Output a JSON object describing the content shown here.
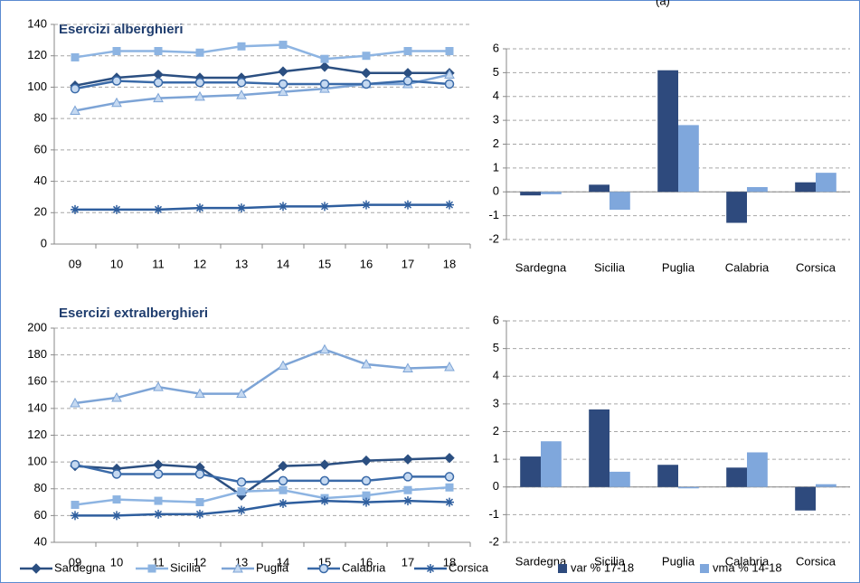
{
  "note": "(a)",
  "chart_data": [
    {
      "type": "line",
      "title": "Esercizi alberghieri",
      "categories": [
        "09",
        "10",
        "11",
        "12",
        "13",
        "14",
        "15",
        "16",
        "17",
        "18"
      ],
      "ylim": [
        0,
        140
      ],
      "yticks": [
        0,
        20,
        40,
        60,
        80,
        100,
        120,
        140
      ],
      "grid": true,
      "series": [
        {
          "name": "Sardegna",
          "color": "#2b4f81",
          "marker": "diamond",
          "values": [
            101,
            106,
            108,
            106,
            106,
            110,
            113,
            109,
            109,
            109
          ]
        },
        {
          "name": "Sicilia",
          "color": "#8db4e2",
          "marker": "square",
          "values": [
            119,
            123,
            123,
            122,
            126,
            127,
            118,
            120,
            123,
            123
          ]
        },
        {
          "name": "Puglia",
          "color": "#7da4d6",
          "marker": "triangle",
          "values": [
            85,
            90,
            93,
            94,
            95,
            97,
            99,
            102,
            102,
            108
          ]
        },
        {
          "name": "Calabria",
          "color": "#3a6aa8",
          "marker": "circle",
          "values": [
            99,
            104,
            103,
            103,
            103,
            102,
            102,
            102,
            104,
            102
          ]
        },
        {
          "name": "Corsica",
          "color": "#2e5e9e",
          "marker": "star",
          "values": [
            22,
            22,
            22,
            23,
            23,
            24,
            24,
            25,
            25,
            25
          ]
        }
      ]
    },
    {
      "type": "bar",
      "categories": [
        "Sardegna",
        "Sicilia",
        "Puglia",
        "Calabria",
        "Corsica"
      ],
      "ylim": [
        -2,
        6
      ],
      "yticks": [
        -2,
        -1,
        0,
        1,
        2,
        3,
        4,
        5,
        6
      ],
      "grid": true,
      "series": [
        {
          "name": "var % 17-18",
          "color": "#2e4a7d",
          "values": [
            -0.15,
            0.3,
            5.1,
            -1.3,
            0.4
          ]
        },
        {
          "name": "vma % 14-18",
          "color": "#7fa7dc",
          "values": [
            -0.1,
            -0.75,
            2.8,
            0.2,
            0.8
          ]
        }
      ]
    },
    {
      "type": "line",
      "title": "Esercizi extralberghieri",
      "categories": [
        "09",
        "10",
        "11",
        "12",
        "13",
        "14",
        "15",
        "16",
        "17",
        "18"
      ],
      "ylim": [
        40,
        200
      ],
      "yticks": [
        40,
        60,
        80,
        100,
        120,
        140,
        160,
        180,
        200
      ],
      "grid": true,
      "series": [
        {
          "name": "Sardegna",
          "color": "#2b4f81",
          "marker": "diamond",
          "values": [
            97,
            95,
            98,
            96,
            75,
            97,
            98,
            101,
            102,
            103
          ]
        },
        {
          "name": "Sicilia",
          "color": "#8db4e2",
          "marker": "square",
          "values": [
            68,
            72,
            71,
            70,
            78,
            79,
            73,
            75,
            79,
            81
          ]
        },
        {
          "name": "Puglia",
          "color": "#7da4d6",
          "marker": "triangle",
          "values": [
            144,
            148,
            156,
            151,
            151,
            172,
            184,
            173,
            170,
            171
          ]
        },
        {
          "name": "Calabria",
          "color": "#3a6aa8",
          "marker": "circle",
          "values": [
            98,
            91,
            91,
            91,
            85,
            86,
            86,
            86,
            89,
            89
          ]
        },
        {
          "name": "Corsica",
          "color": "#2e5e9e",
          "marker": "star",
          "values": [
            60,
            60,
            61,
            61,
            64,
            69,
            71,
            70,
            71,
            70
          ]
        }
      ]
    },
    {
      "type": "bar",
      "categories": [
        "Sardegna",
        "Sicilia",
        "Puglia",
        "Calabria",
        "Corsica"
      ],
      "ylim": [
        -2,
        6
      ],
      "yticks": [
        -2,
        -1,
        0,
        1,
        2,
        3,
        4,
        5,
        6
      ],
      "grid": true,
      "series": [
        {
          "name": "var % 17-18",
          "color": "#2e4a7d",
          "values": [
            1.1,
            2.8,
            0.8,
            0.7,
            -0.85
          ]
        },
        {
          "name": "vma % 14-18",
          "color": "#7fa7dc",
          "values": [
            1.65,
            0.55,
            -0.05,
            1.25,
            0.1
          ]
        }
      ]
    }
  ]
}
